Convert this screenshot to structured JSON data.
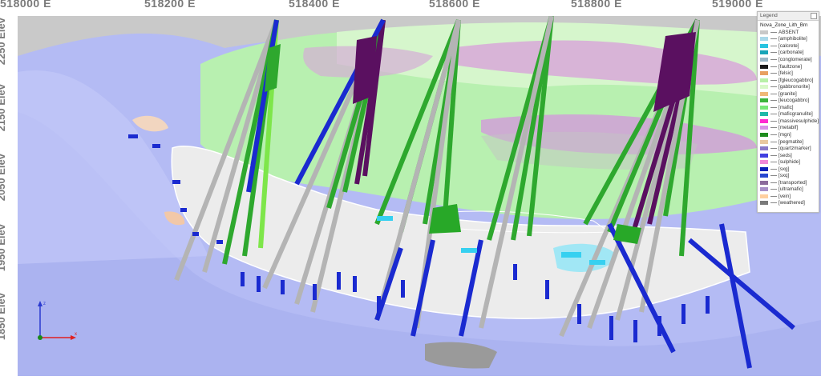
{
  "view": {
    "x_axis_labels": [
      "518000 E",
      "518200 E",
      "518400 E",
      "518600 E",
      "518800 E",
      "519000 E"
    ],
    "y_axis_labels": [
      "2250 Elev",
      "2150 Elev",
      "2050 Elev",
      "1950 Elev",
      "1850 Elev"
    ]
  },
  "legend": {
    "title": "Legend",
    "layer_name": "Nova_Zone_Lith_Brn",
    "items": [
      {
        "label": "ABSENT",
        "color": "#c8c8c8"
      },
      {
        "label": "[amphibolite]",
        "color": "#a8d8ea"
      },
      {
        "label": "[calcrete]",
        "color": "#29c4e0"
      },
      {
        "label": "[carbonate]",
        "color": "#18a5b8"
      },
      {
        "label": "[conglomerate]",
        "color": "#9bb7c7"
      },
      {
        "label": "[faultzone]",
        "color": "#1a1a1a"
      },
      {
        "label": "[felsic]",
        "color": "#e8a060"
      },
      {
        "label": "[fgleucogabbro]",
        "color": "#b8f0a8"
      },
      {
        "label": "[gabbronorite]",
        "color": "#d8f8c8"
      },
      {
        "label": "[granite]",
        "color": "#f0b878"
      },
      {
        "label": "[leucogabbro]",
        "color": "#3cb43c"
      },
      {
        "label": "[mafic]",
        "color": "#78e878"
      },
      {
        "label": "[maficgranulite]",
        "color": "#20b8a8"
      },
      {
        "label": "[massivesulphide]",
        "color": "#ff2ad0"
      },
      {
        "label": "[metabif]",
        "color": "#d890e8"
      },
      {
        "label": "[mgn]",
        "color": "#1e8c1e"
      },
      {
        "label": "[pegmatite]",
        "color": "#e8c8a0"
      },
      {
        "label": "[quartzmarker]",
        "color": "#8878c8"
      },
      {
        "label": "[seds]",
        "color": "#4040e0"
      },
      {
        "label": "[sulphide]",
        "color": "#f088d8"
      },
      {
        "label": "[sxg]",
        "color": "#0a20b8"
      },
      {
        "label": "[sxq]",
        "color": "#2848d0"
      },
      {
        "label": "[transported]",
        "color": "#8c6c9c"
      },
      {
        "label": "[ultramafic]",
        "color": "#a890c8"
      },
      {
        "label": "[vein]",
        "color": "#ffd0a0"
      },
      {
        "label": "[weathered]",
        "color": "#7a7a7a"
      }
    ]
  },
  "colors": {
    "background_blue": "#b6bdf6",
    "dark_purple": "#5a1060",
    "green": "#2ea82e",
    "bright_green": "#7ee64a",
    "grey_hole": "#b4b4b4",
    "blue_hole": "#1a2ad0",
    "cyan": "#36d0f0"
  },
  "axis_gizmo": {
    "x_label": "x",
    "z_label": "z"
  }
}
